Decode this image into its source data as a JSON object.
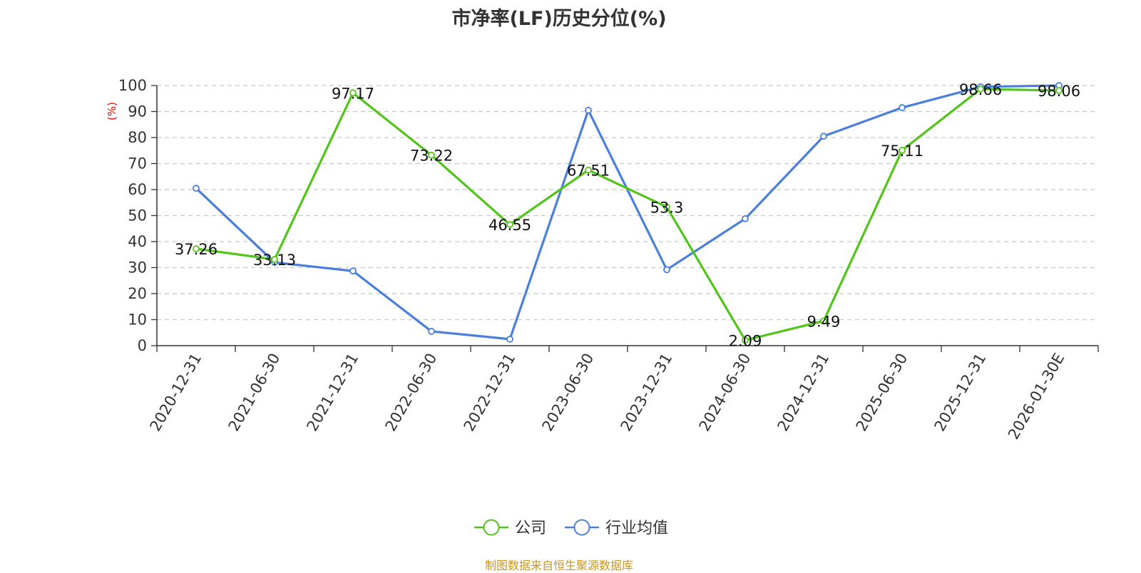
{
  "chart_data": {
    "type": "line",
    "title": "市净率(LF)历史分位(%)",
    "ylabel": "(%)",
    "ylim": [
      0,
      100
    ],
    "yticks": [
      0,
      10,
      20,
      30,
      40,
      50,
      60,
      70,
      80,
      90,
      100
    ],
    "grid": true,
    "legend_position": "bottom-center",
    "categories": [
      "2020-12-31",
      "2021-06-30",
      "2021-12-31",
      "2022-06-30",
      "2022-12-31",
      "2023-06-30",
      "2023-12-31",
      "2024-06-30",
      "2024-12-31",
      "2025-06-30",
      "2025-12-31",
      "2026-01-30E"
    ],
    "series": [
      {
        "name": "公司",
        "color": "#52c41a",
        "show_labels": true,
        "values": [
          37.26,
          33.13,
          97.17,
          73.22,
          46.55,
          67.51,
          53.3,
          2.09,
          9.49,
          75.11,
          98.66,
          98.06
        ]
      },
      {
        "name": "行业均值",
        "color": "#4a7fdc",
        "show_labels": false,
        "values": [
          60.5,
          32,
          28.7,
          5.5,
          2.5,
          90.5,
          29.2,
          48.8,
          80.5,
          91.5,
          99.5,
          100
        ]
      }
    ]
  },
  "ylabel_color": "#ff0000",
  "source_note": "制图数据来自恒生聚源数据库",
  "source_color": "#c8961e"
}
